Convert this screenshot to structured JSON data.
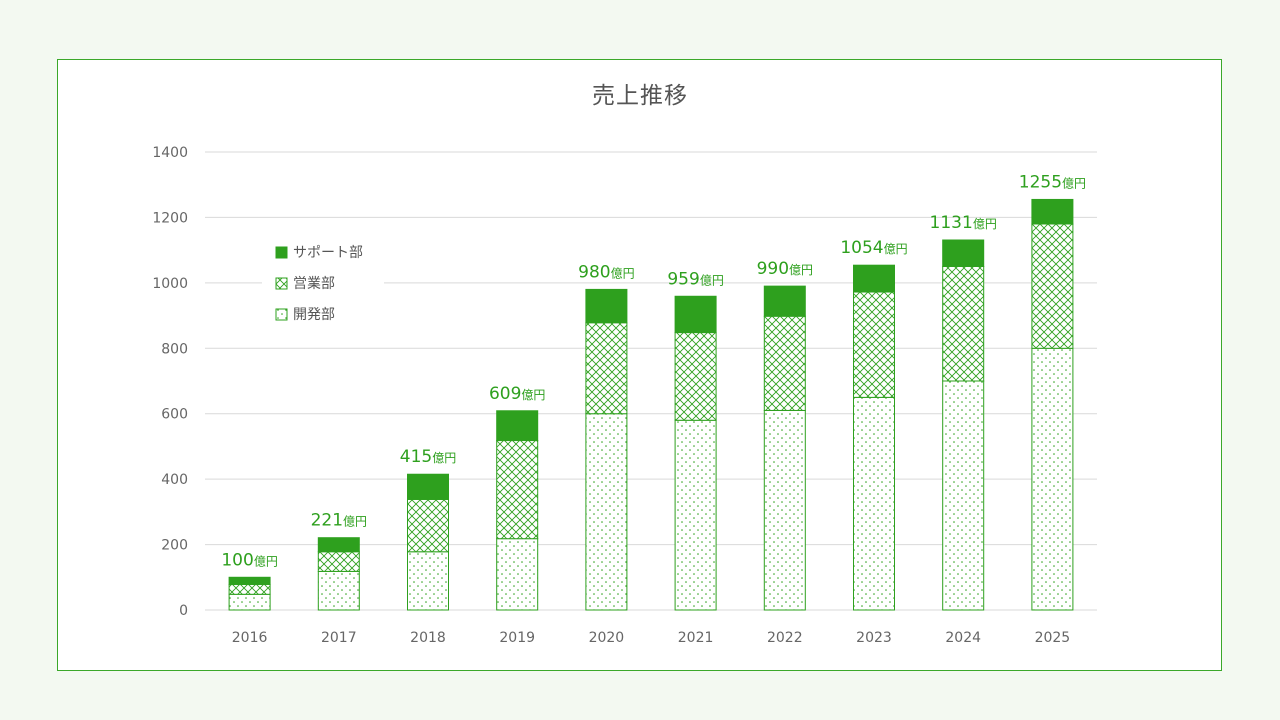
{
  "chart_data": {
    "type": "bar",
    "stacked": true,
    "title": "売上推移",
    "categories": [
      "2016",
      "2017",
      "2018",
      "2019",
      "2020",
      "2021",
      "2022",
      "2023",
      "2024",
      "2025"
    ],
    "series": [
      {
        "name": "開発部",
        "pattern": "dots",
        "values": [
          48,
          118,
          178,
          218,
          600,
          580,
          610,
          650,
          700,
          800
        ]
      },
      {
        "name": "営業部",
        "pattern": "crosshatch",
        "values": [
          30,
          60,
          160,
          300,
          278,
          268,
          288,
          322,
          350,
          380
        ]
      },
      {
        "name": "サポート部",
        "pattern": "solid",
        "values": [
          22,
          43,
          77,
          91,
          102,
          111,
          92,
          82,
          81,
          75
        ]
      }
    ],
    "totals": [
      "100",
      "221",
      "415",
      "609",
      "980",
      "959",
      "990",
      "1054",
      "1131",
      "1255"
    ],
    "total_unit": "億円",
    "ylim": [
      0,
      1400
    ],
    "yticks": [
      "0",
      "200",
      "400",
      "600",
      "800",
      "1000",
      "1200",
      "1400"
    ],
    "grid": true,
    "legend_position": "top-left",
    "legend_order": [
      "サポート部",
      "営業部",
      "開発部"
    ],
    "colors": {
      "accent": "#2ea01e",
      "grid": "#d9d9d9",
      "axis_text": "#666666",
      "title": "#555555"
    }
  }
}
